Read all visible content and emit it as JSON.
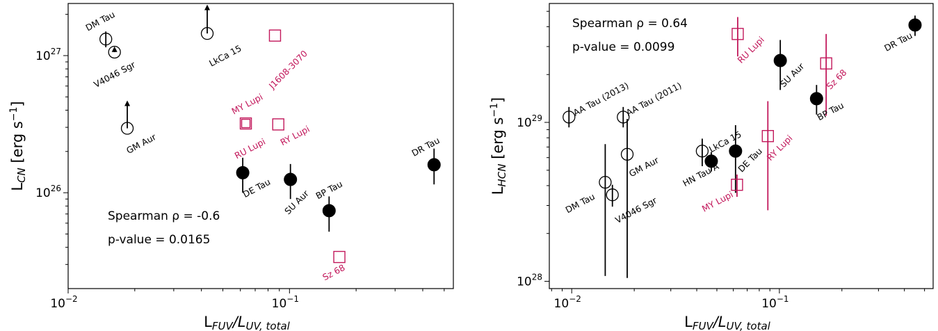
{
  "colors": {
    "black": "#000000",
    "crimson": "#c2185b"
  },
  "chart_data": [
    {
      "type": "scatter",
      "xlabel": "L_FUV/L_UV,total",
      "xlabel_main": "L",
      "xlabel_sub": "FUV",
      "xlabel_mid": "/L",
      "xlabel_sub2": "UV, total",
      "ylabel": "L_CN [erg s^-1]",
      "ylabel_main": "L",
      "ylabel_sub": "CN",
      "ylabel_rest": " [erg s",
      "ylabel_sup": "−1",
      "ylabel_end": "]",
      "xscale": "log",
      "yscale": "log",
      "xlim": [
        0.01,
        0.55
      ],
      "ylim": [
        2e+25,
        2.4e+27
      ],
      "x_ticks": [
        {
          "value": 0.01,
          "base": "10",
          "exp": "−2"
        },
        {
          "value": 0.1,
          "base": "10",
          "exp": "−1"
        }
      ],
      "y_ticks": [
        {
          "value": 1e+26,
          "base": "10",
          "exp": "26"
        },
        {
          "value": 1e+27,
          "base": "10",
          "exp": "27"
        }
      ],
      "stats": {
        "spearman": "Spearman ρ =  -0.6",
        "pvalue": "p-value = 0.0165"
      },
      "stats_position": "lower-left",
      "points": [
        {
          "label": "DM Tau",
          "x": 0.0148,
          "y": 1.32e+27,
          "marker": "open-circle",
          "color": "black",
          "err": [
            1.15e+27,
            1.5e+27
          ],
          "label_angle": -28,
          "label_dx": -6,
          "label_dy": -22
        },
        {
          "label": "V4046 Sgr",
          "x": 0.0162,
          "y": 1.06e+27,
          "marker": "open-circle",
          "color": "black",
          "uplim": 1.14e+27,
          "label_angle": -28,
          "label_dx": 2,
          "label_dy": 36
        },
        {
          "label": "GM Aur",
          "x": 0.0185,
          "y": 2.95e+26,
          "marker": "open-circle",
          "color": "black",
          "uplim": 4.6e+26,
          "label_angle": -28,
          "label_dx": 22,
          "label_dy": 26
        },
        {
          "label": "LkCa 15",
          "x": 0.0425,
          "y": 1.45e+27,
          "marker": "open-circle",
          "color": "black",
          "uplim": 2.3e+27,
          "label_angle": -28,
          "label_dx": 28,
          "label_dy": 36
        },
        {
          "label": "J1608-3070",
          "x": 0.086,
          "y": 1.4e+27,
          "marker": "open-square",
          "color": "crimson",
          "label_angle": -45,
          "label_dx": 22,
          "label_dy": 52
        },
        {
          "label": "MY Lupi",
          "x": 0.0635,
          "y": 3.2e+26,
          "marker": "open-square",
          "color": "crimson",
          "label_angle": -28,
          "label_dx": 4,
          "label_dy": -24
        },
        {
          "label": "RU Lupi",
          "x": 0.0635,
          "y": 3.2e+26,
          "marker": "open-square-small",
          "color": "crimson",
          "label_angle": -28,
          "label_dx": 8,
          "label_dy": 40
        },
        {
          "label": "RY Lupi",
          "x": 0.089,
          "y": 3.15e+26,
          "marker": "open-square",
          "color": "crimson",
          "label_angle": -28,
          "label_dx": 26,
          "label_dy": 20
        },
        {
          "label": "DE Tau",
          "x": 0.0615,
          "y": 1.4e+26,
          "marker": "filled-circle",
          "color": "black",
          "err": [
            1e+26,
            1.8e+26
          ],
          "label_angle": -28,
          "label_dx": 22,
          "label_dy": 26
        },
        {
          "label": "SU Aur",
          "x": 0.101,
          "y": 1.25e+26,
          "marker": "filled-circle",
          "color": "black",
          "err": [
            9e+25,
            1.62e+26
          ],
          "label_angle": -45,
          "label_dx": 12,
          "label_dy": 36
        },
        {
          "label": "BP Tau",
          "x": 0.151,
          "y": 7.4e+25,
          "marker": "filled-circle",
          "color": "black",
          "err": [
            5.2e+25,
            9.4e+25
          ],
          "label_angle": -28,
          "label_dx": 2,
          "label_dy": -26
        },
        {
          "label": "DR Tau",
          "x": 0.45,
          "y": 1.6e+26,
          "marker": "filled-circle",
          "color": "black",
          "err": [
            1.15e+26,
            2.1e+26
          ],
          "label_angle": -28,
          "label_dx": -10,
          "label_dy": -22
        },
        {
          "label": "Sz 68",
          "x": 0.168,
          "y": 3.4e+25,
          "marker": "open-square",
          "color": "crimson",
          "label_angle": -28,
          "label_dx": -6,
          "label_dy": 26
        }
      ]
    },
    {
      "type": "scatter",
      "xlabel": "L_FUV/L_UV,total",
      "xlabel_main": "L",
      "xlabel_sub": "FUV",
      "xlabel_mid": "/L",
      "xlabel_sub2": "UV, total",
      "ylabel": "L_HCN [erg s^-1]",
      "ylabel_main": "L",
      "ylabel_sub": "HCN",
      "ylabel_rest": " [erg s",
      "ylabel_sup": "−1",
      "ylabel_end": "]",
      "xscale": "log",
      "yscale": "log",
      "xlim": [
        0.0078,
        0.55
      ],
      "ylim": [
        9e+27,
        5.6e+29
      ],
      "x_ticks": [
        {
          "value": 0.01,
          "base": "10",
          "exp": "−2"
        },
        {
          "value": 0.1,
          "base": "10",
          "exp": "−1"
        }
      ],
      "y_ticks": [
        {
          "value": 1e+28,
          "base": "10",
          "exp": "28"
        },
        {
          "value": 1e+29,
          "base": "10",
          "exp": "29"
        }
      ],
      "stats": {
        "spearman": "Spearman ρ =  0.64",
        "pvalue": "p-value = 0.0099"
      },
      "stats_position": "top-left",
      "points": [
        {
          "label": "AA Tau (2013)",
          "x": 0.0097,
          "y": 1.08e+29,
          "marker": "open-circle",
          "color": "black",
          "err": [
            9.3e+28,
            1.25e+29
          ],
          "label_angle": -28,
          "label_dx": 48,
          "label_dy": -22
        },
        {
          "label": "AA Tau (2011)",
          "x": 0.0177,
          "y": 1.08e+29,
          "marker": "open-circle",
          "color": "black",
          "err": [
            9.3e+28,
            1.25e+29
          ],
          "label_angle": -28,
          "label_dx": 46,
          "label_dy": -22
        },
        {
          "label": "GM Aur",
          "x": 0.0185,
          "y": 6.3e+28,
          "marker": "open-circle",
          "color": "black",
          "err": [
            1.05e+28,
            1.05e+29
          ],
          "label_angle": -28,
          "label_dx": 26,
          "label_dy": 22
        },
        {
          "label": "DM Tau",
          "x": 0.0145,
          "y": 4.2e+28,
          "marker": "open-circle",
          "color": "black",
          "err": [
            1.08e+28,
            7.3e+28
          ],
          "label_angle": -28,
          "label_dx": -34,
          "label_dy": 34
        },
        {
          "label": "V4046 Sgr",
          "x": 0.0157,
          "y": 3.5e+28,
          "marker": "open-circle",
          "color": "black",
          "err": [
            2.95e+28,
            4.05e+28
          ],
          "label_angle": -28,
          "label_dx": 36,
          "label_dy": 26
        },
        {
          "label": "HN Tau A",
          "x": 0.0425,
          "y": 6.6e+28,
          "marker": "open-circle",
          "color": "black",
          "err": [
            5.3e+28,
            7.9e+28
          ],
          "label_angle": -28,
          "label_dx": 0,
          "label_dy": 38
        },
        {
          "label": "LkCa 15",
          "x": 0.047,
          "y": 5.7e+28,
          "marker": "filled-circle",
          "color": "black",
          "err": [
            4.9e+28,
            6.5e+28
          ],
          "label_angle": -28,
          "label_dx": 22,
          "label_dy": -24
        },
        {
          "label": "DE Tau",
          "x": 0.0615,
          "y": 6.6e+28,
          "marker": "filled-circle",
          "color": "black",
          "err": [
            3.6e+28,
            9.6e+28
          ],
          "label_angle": -45,
          "label_dx": 24,
          "label_dy": 16
        },
        {
          "label": "MY Lupi",
          "x": 0.0625,
          "y": 4.05e+28,
          "marker": "open-square",
          "color": "crimson",
          "err": [
            3.4e+28,
            4.7e+28
          ],
          "label_angle": -28,
          "label_dx": -26,
          "label_dy": 28
        },
        {
          "label": "RY Lupi",
          "x": 0.088,
          "y": 8.2e+28,
          "marker": "open-square",
          "color": "crimson",
          "err": [
            2.8e+28,
            1.36e+29
          ],
          "label_angle": -45,
          "label_dx": 20,
          "label_dy": 20
        },
        {
          "label": "RU Lupi",
          "x": 0.063,
          "y": 3.6e+29,
          "marker": "open-square",
          "color": "crimson",
          "err": [
            2.6e+29,
            4.6e+29
          ],
          "label_angle": -45,
          "label_dx": 22,
          "label_dy": 26
        },
        {
          "label": "SU Aur",
          "x": 0.101,
          "y": 2.45e+29,
          "marker": "filled-circle",
          "color": "black",
          "err": [
            1.6e+29,
            3.3e+29
          ],
          "label_angle": -45,
          "label_dx": 20,
          "label_dy": 24
        },
        {
          "label": "Sz 68",
          "x": 0.168,
          "y": 2.35e+29,
          "marker": "open-square",
          "color": "crimson",
          "err": [
            1.1e+29,
            3.6e+29
          ],
          "label_angle": -45,
          "label_dx": 18,
          "label_dy": 26
        },
        {
          "label": "BP Tau",
          "x": 0.151,
          "y": 1.41e+29,
          "marker": "filled-circle",
          "color": "black",
          "err": [
            1.12e+29,
            1.72e+29
          ],
          "label_angle": -28,
          "label_dx": 22,
          "label_dy": 22
        },
        {
          "label": "DR Tau",
          "x": 0.45,
          "y": 4.1e+29,
          "marker": "filled-circle",
          "color": "black",
          "err": [
            3.5e+29,
            4.7e+29
          ],
          "label_angle": -28,
          "label_dx": -22,
          "label_dy": 28
        }
      ]
    }
  ]
}
